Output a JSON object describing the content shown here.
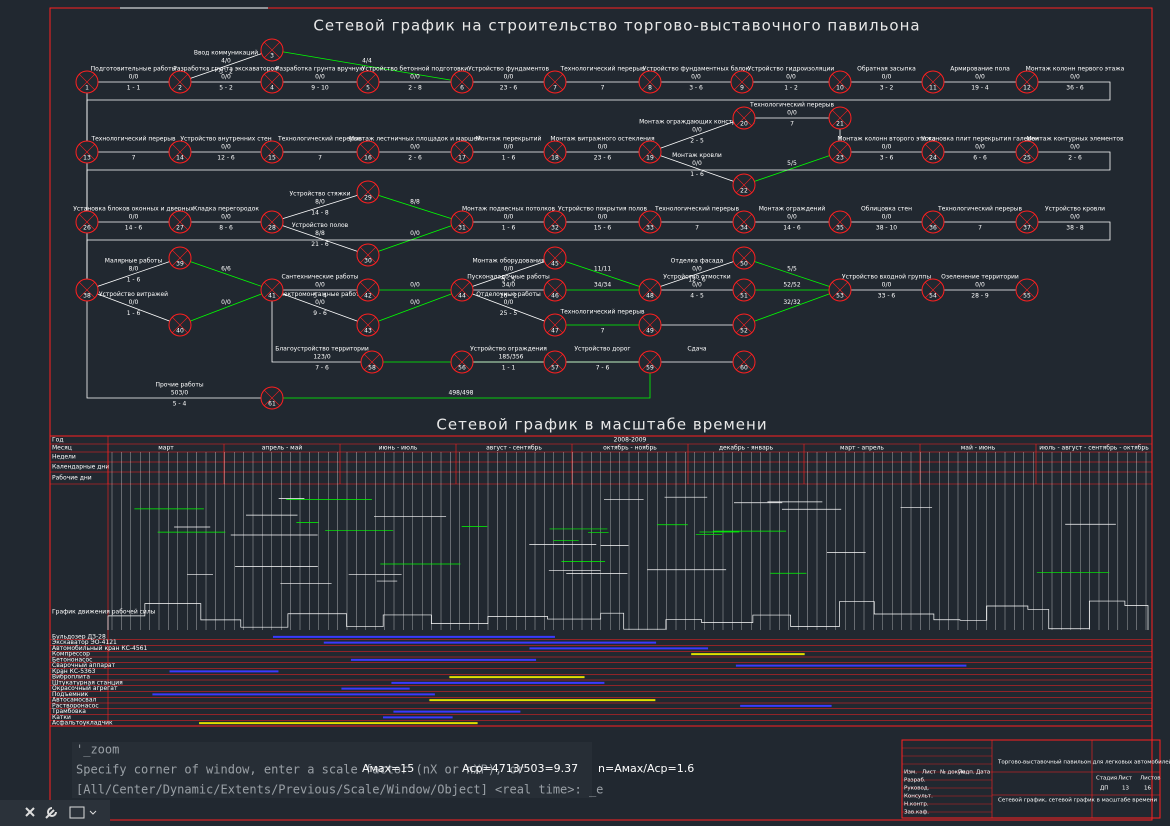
{
  "title": "Сетевой график на строительство торгово-выставочного павильона",
  "title2": "Сетевой график в масштабе времени",
  "edge_color": "#ffffff",
  "highlight_color": "#00ff00",
  "node_color": "#ff2020",
  "nodes": [
    "1",
    "2",
    "3",
    "4",
    "5",
    "6",
    "7",
    "8",
    "9",
    "10",
    "11",
    "12",
    "13",
    "14",
    "15",
    "16",
    "17",
    "18",
    "19",
    "20",
    "21",
    "22",
    "23",
    "24",
    "25",
    "26",
    "27",
    "28",
    "29",
    "30",
    "31",
    "32",
    "33",
    "34",
    "35",
    "36",
    "37",
    "38",
    "39",
    "40",
    "41",
    "42",
    "43",
    "44",
    "45",
    "46",
    "47",
    "48",
    "49",
    "50",
    "51",
    "52",
    "53",
    "54",
    "55",
    "56",
    "57",
    "58",
    "59",
    "60",
    "61"
  ],
  "edges": [
    {
      "from": "1",
      "to": "2",
      "label": "Подготовительные работы",
      "top": "0/0",
      "bottom": "1 - 1"
    },
    {
      "from": "2",
      "to": "3",
      "label": "Ввод коммуникаций",
      "top": "4/0",
      "bottom": "3 - 2"
    },
    {
      "from": "2",
      "to": "4",
      "label": "Разработка грунта экскаватором",
      "top": "0/0",
      "bottom": "5 - 2"
    },
    {
      "from": "3",
      "to": "6",
      "top": "4/4",
      "highlight": true
    },
    {
      "from": "4",
      "to": "5",
      "label": "Разработка грунта вручную",
      "top": "0/0",
      "bottom": "9 - 10"
    },
    {
      "from": "5",
      "to": "6",
      "label": "Устройство бетонной подготовки",
      "top": "0/0",
      "bottom": "2 - 8"
    },
    {
      "from": "6",
      "to": "7",
      "label": "Устройство фундаментов",
      "top": "0/0",
      "bottom": "23 - 6"
    },
    {
      "from": "7",
      "to": "8",
      "label": "Технологический перерыв",
      "bottom": "7"
    },
    {
      "from": "8",
      "to": "9",
      "label": "Устройство фундаментных балок",
      "top": "0/0",
      "bottom": "3 - 6"
    },
    {
      "from": "9",
      "to": "10",
      "label": "Устройство гидроизоляции",
      "top": "0/0",
      "bottom": "1 - 2"
    },
    {
      "from": "10",
      "to": "11",
      "label": "Обратная засыпка",
      "top": "0/0",
      "bottom": "3 - 2"
    },
    {
      "from": "11",
      "to": "12",
      "label": "Армирование пола",
      "top": "0/0",
      "bottom": "19 - 4"
    },
    {
      "from": "12",
      "to": "13",
      "label": "Монтаж колонн первого этажа",
      "top": "0/0",
      "bottom": "36 - 6"
    },
    {
      "from": "13",
      "to": "14",
      "label": "Технологический перерыв",
      "bottom": "7"
    },
    {
      "from": "14",
      "to": "15",
      "label": "Устройство внутренних стен",
      "top": "0/0",
      "bottom": "12 - 6"
    },
    {
      "from": "15",
      "to": "16",
      "label": "Технологический перерыв",
      "bottom": "7"
    },
    {
      "from": "16",
      "to": "17",
      "label": "Монтаж лестничных площадок и маршей",
      "top": "0/0",
      "bottom": "2 - 6"
    },
    {
      "from": "17",
      "to": "18",
      "label": "Монтаж перекрытий",
      "top": "0/0",
      "bottom": "1 - 6"
    },
    {
      "from": "18",
      "to": "19",
      "label": "Монтаж витражного остекления",
      "top": "0/0",
      "bottom": "23 - 6"
    },
    {
      "from": "19",
      "to": "20",
      "label": "Монтаж ограждающих конструкций",
      "top": "0/0",
      "bottom": "2 - 5"
    },
    {
      "from": "19",
      "to": "22",
      "label": "Монтаж кровли",
      "top": "0/0",
      "bottom": "1 - 6"
    },
    {
      "from": "20",
      "to": "21",
      "label": "Технологический перерыв",
      "top": "0/0",
      "bottom": "7"
    },
    {
      "from": "21",
      "to": "23"
    },
    {
      "from": "22",
      "to": "23",
      "top": "5/5",
      "highlight": true
    },
    {
      "from": "23",
      "to": "24",
      "label": "Монтаж колонн второго этажа",
      "top": "0/0",
      "bottom": "3 - 6"
    },
    {
      "from": "24",
      "to": "25",
      "label": "Установка плит перекрытия галереи",
      "top": "0/0",
      "bottom": "6 - 6"
    },
    {
      "from": "25",
      "to": "26",
      "label": "Монтаж контурных элементов",
      "top": "0/0",
      "bottom": "2 - 6"
    },
    {
      "from": "26",
      "to": "27",
      "label": "Установка блоков оконных и дверных",
      "top": "0/0",
      "bottom": "14 - 6"
    },
    {
      "from": "27",
      "to": "28",
      "label": "Кладка перегородок",
      "top": "0/0",
      "bottom": "8 - 6"
    },
    {
      "from": "28",
      "to": "29",
      "label": "Устройство стяжки",
      "top": "8/0",
      "bottom": "14 - 8"
    },
    {
      "from": "28",
      "to": "30",
      "label": "Устройство полов",
      "top": "8/8",
      "bottom": "21 - 6"
    },
    {
      "from": "29",
      "to": "31",
      "top": "8/8",
      "highlight": true
    },
    {
      "from": "30",
      "to": "31",
      "top": "0/0",
      "highlight": true
    },
    {
      "from": "31",
      "to": "32",
      "label": "Монтаж подвесных потолков",
      "top": "0/0",
      "bottom": "1 - 6"
    },
    {
      "from": "32",
      "to": "33",
      "label": "Устройство покрытия полов",
      "top": "0/0",
      "bottom": "15 - 6"
    },
    {
      "from": "33",
      "to": "34",
      "label": "Технологический перерыв",
      "bottom": "7"
    },
    {
      "from": "34",
      "to": "35",
      "label": "Монтаж ограждений",
      "top": "0/0",
      "bottom": "14 - 6"
    },
    {
      "from": "35",
      "to": "36",
      "label": "Облицовка стен",
      "top": "0/0",
      "bottom": "38 - 10"
    },
    {
      "from": "36",
      "to": "37",
      "label": "Технологический перерыв",
      "bottom": "7"
    },
    {
      "from": "37",
      "to": "38",
      "label": "Устройство кровли",
      "top": "0/0",
      "bottom": "38 - 8"
    },
    {
      "from": "38",
      "to": "39",
      "label": "Малярные работы",
      "top": "8/0",
      "bottom": "1 - 6"
    },
    {
      "from": "38",
      "to": "40",
      "label": "Устройство витражей",
      "top": "0/0",
      "bottom": "1 - 6"
    },
    {
      "from": "39",
      "to": "41",
      "top": "6/6",
      "highlight": true
    },
    {
      "from": "40",
      "to": "41",
      "top": "0/0",
      "highlight": true
    },
    {
      "from": "41",
      "to": "42",
      "label": "Сантехнические работы",
      "top": "0/0",
      "bottom": "5 - 4"
    },
    {
      "from": "41",
      "to": "43",
      "label": "Электромонтажные работы",
      "top": "0/0",
      "bottom": "9 - 6"
    },
    {
      "from": "42",
      "to": "44",
      "top": "0/0",
      "highlight": true
    },
    {
      "from": "43",
      "to": "44",
      "top": "0/0",
      "highlight": true
    },
    {
      "from": "44",
      "to": "45",
      "label": "Монтаж оборудования",
      "top": "0/0",
      "bottom": "5 - 5"
    },
    {
      "from": "44",
      "to": "46",
      "label": "Пусконаладочные работы",
      "top": "34/0",
      "bottom": "16 - 2"
    },
    {
      "from": "44",
      "to": "47",
      "label": "Отделочные работы",
      "top": "0/0",
      "bottom": "25 - 5"
    },
    {
      "from": "45",
      "to": "48",
      "top": "11/11",
      "highlight": true
    },
    {
      "from": "46",
      "to": "48",
      "top": "34/34",
      "highlight": true
    },
    {
      "from": "47",
      "to": "49",
      "label": "Технологический перерыв",
      "bottom": "7",
      "highlight": true
    },
    {
      "from": "48",
      "to": "50",
      "label": "Отделка фасада",
      "top": "0/0",
      "bottom": "12 - 6"
    },
    {
      "from": "48",
      "to": "51",
      "label": "Устройство отмостки",
      "top": "0/0",
      "bottom": "4 - 5"
    },
    {
      "from": "49",
      "to": "52"
    },
    {
      "from": "50",
      "to": "53",
      "top": "5/5",
      "highlight": true
    },
    {
      "from": "51",
      "to": "53",
      "top": "52/52",
      "highlight": true
    },
    {
      "from": "52",
      "to": "53",
      "top": "32/32",
      "highlight": true
    },
    {
      "from": "53",
      "to": "54",
      "label": "Устройство входной группы",
      "top": "0/0",
      "bottom": "33 - 6"
    },
    {
      "from": "54",
      "to": "55",
      "label": "Озеленение территории",
      "top": "0/0",
      "bottom": "28 - 9"
    },
    {
      "from": "41",
      "to": "58",
      "label": "Благоустройство территории",
      "top": "123/0",
      "bottom": "7 - 6"
    },
    {
      "from": "58",
      "to": "59",
      "top": "185/356",
      "highlight": true
    },
    {
      "from": "56",
      "to": "57",
      "label": "Устройство ограждения",
      "bottom": "1 - 1"
    },
    {
      "from": "57",
      "to": "59",
      "label": "Устройство дорог",
      "bottom": "7 - 6"
    },
    {
      "from": "59",
      "to": "60",
      "label": "Сдача"
    },
    {
      "from": "1",
      "to": "61",
      "label": "Прочие работы",
      "top": "503/0",
      "bottom": "5 - 4"
    },
    {
      "from": "61",
      "to": "59",
      "top": "498/498",
      "highlight": true
    }
  ],
  "timescale": {
    "header": [
      "Год",
      "Месяц",
      "Недели",
      "Календарные дни",
      "Рабочие дни"
    ],
    "year": "2008-2009",
    "months": [
      "март",
      "апрель - май",
      "июнь - июль",
      "август - сентябрь",
      "октябрь - ноябрь",
      "декабрь - январь",
      "март - апрель",
      "май - июнь",
      "июль - август - сентябрь - октябрь"
    ],
    "rows": [
      "График движения рабочей силы",
      "Бульдозер ДЗ-28",
      "Экскаватор ЭО-4121",
      "Автомобильный кран КС-4561",
      "Компрессор",
      "Бетононасос",
      "Сварочный аппарат",
      "Кран КС-5363",
      "Виброплита",
      "Штукатурная станция",
      "Окрасочный агрегат",
      "Подъемник",
      "Автосамосвал",
      "Растворонасос",
      "Трамбовка",
      "Катки",
      "Асфальтоукладчик"
    ]
  },
  "command_lines": [
    "'_zoom",
    "Specify corner of window, enter a scale factor (nX or nXP), or",
    "[All/Center/Dynamic/Extents/Previous/Scale/Window/Object] <real time>: _e"
  ],
  "formulas": [
    "Aмах=15",
    "Aср=4713/503=9.37",
    "n=Aмах/Aср=1.6"
  ],
  "title_block": {
    "project": "Торгово-выставочный павильон для легковых автомобилей общей площадью 2000 м2",
    "sheet_title": "Сетевой график, сетевой график в масштабе времени",
    "columns": [
      "Изм.",
      "Лист",
      "№ докум.",
      "Подп.",
      "Дата"
    ],
    "roles": [
      "Разраб.",
      "Руковод.",
      "Консульт.",
      "Н.контр.",
      "Зав.каф."
    ],
    "stage_headers": [
      "Стадия",
      "Лист",
      "Листов"
    ],
    "stage_values": [
      "ДП",
      "13",
      "16"
    ]
  }
}
